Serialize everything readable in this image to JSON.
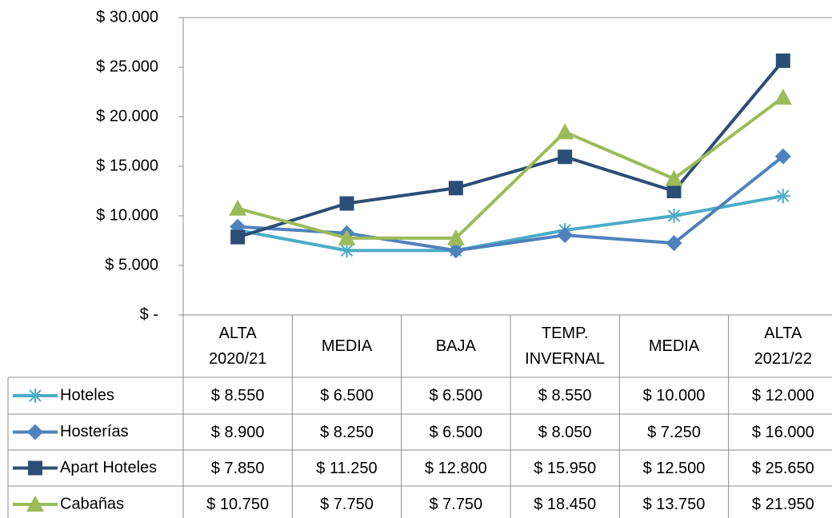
{
  "chart_data": {
    "type": "line",
    "categories": [
      "ALTA\n2020/21",
      "MEDIA",
      "BAJA",
      "TEMP.\nINVERNAL",
      "MEDIA",
      "ALTA\n2021/22"
    ],
    "series": [
      {
        "name": "Hoteles",
        "color": "#4bacc6",
        "marker": "star",
        "values": [
          8550,
          6500,
          6500,
          8550,
          10000,
          12000
        ],
        "value_labels": [
          "$ 8.550",
          "$ 6.500",
          "$ 6.500",
          "$ 8.550",
          "$ 10.000",
          "$ 12.000"
        ]
      },
      {
        "name": "Hosterías",
        "color": "#4f81bd",
        "marker": "diamond",
        "values": [
          8900,
          8250,
          6500,
          8050,
          7250,
          16000
        ],
        "value_labels": [
          "$ 8.900",
          "$ 8.250",
          "$ 6.500",
          "$ 8.050",
          "$ 7.250",
          "$ 16.000"
        ]
      },
      {
        "name": "Apart Hoteles",
        "color": "#2c4d75",
        "marker": "square",
        "values": [
          7850,
          11250,
          12800,
          15950,
          12500,
          25650
        ],
        "value_labels": [
          "$ 7.850",
          "$ 11.250",
          "$ 12.800",
          "$ 15.950",
          "$ 12.500",
          "$ 25.650"
        ]
      },
      {
        "name": "Cabañas",
        "color": "#9bbb59",
        "marker": "triangle",
        "values": [
          10750,
          7750,
          7750,
          18450,
          13750,
          21950
        ],
        "value_labels": [
          "$ 10.750",
          "$ 7.750",
          "$ 7.750",
          "$ 18.450",
          "$ 13.750",
          "$ 21.950"
        ]
      }
    ],
    "ylim": [
      0,
      30000
    ],
    "yticks": [
      {
        "value": 0,
        "label": "$ -"
      },
      {
        "value": 5000,
        "label": "$ 5.000"
      },
      {
        "value": 10000,
        "label": "$ 10.000"
      },
      {
        "value": 15000,
        "label": "$ 15.000"
      },
      {
        "value": 20000,
        "label": "$ 20.000"
      },
      {
        "value": 25000,
        "label": "$ 25.000"
      },
      {
        "value": 30000,
        "label": "$ 30.000"
      }
    ],
    "data_table": true
  }
}
